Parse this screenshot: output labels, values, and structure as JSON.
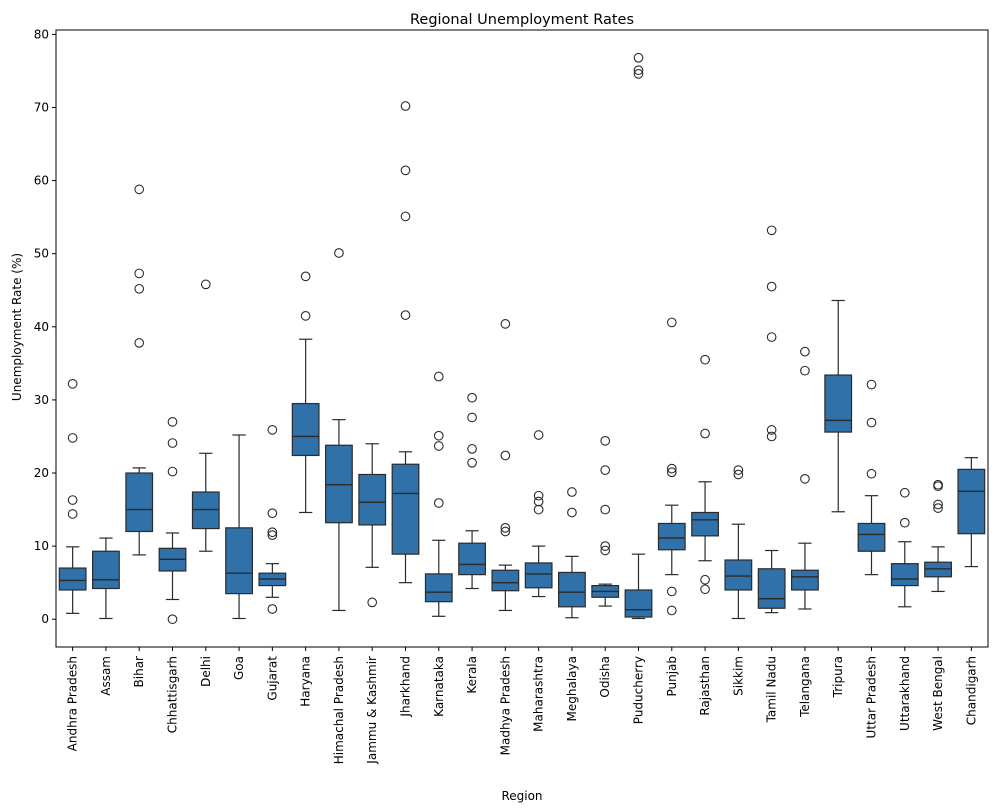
{
  "chart_data": {
    "type": "box",
    "title": "Regional Unemployment Rates",
    "xlabel": "Region",
    "ylabel": "Unemployment Rate (%)",
    "ylim": [
      -3.8,
      80.6
    ],
    "yticks": [
      0,
      10,
      20,
      30,
      40,
      50,
      60,
      70,
      80
    ],
    "grid": false,
    "legend": "none",
    "box_color": "#2f71a8",
    "line_color": "#2b2b2b",
    "categories": [
      {
        "name": "Andhra Pradesh",
        "whisker_low": 0.8,
        "q1": 4.0,
        "median": 5.3,
        "q3": 7.0,
        "whisker_high": 9.9,
        "outliers": [
          14.4,
          16.3,
          24.8,
          32.2
        ]
      },
      {
        "name": "Assam",
        "whisker_low": 0.1,
        "q1": 4.2,
        "median": 5.4,
        "q3": 9.3,
        "whisker_high": 11.1,
        "outliers": []
      },
      {
        "name": "Bihar",
        "whisker_low": 8.8,
        "q1": 12.0,
        "median": 15.0,
        "q3": 20.0,
        "whisker_high": 20.7,
        "outliers": [
          37.8,
          45.2,
          47.3,
          58.8
        ]
      },
      {
        "name": "Chhattisgarh",
        "whisker_low": 2.7,
        "q1": 6.6,
        "median": 8.2,
        "q3": 9.7,
        "whisker_high": 11.8,
        "outliers": [
          0.0,
          20.2,
          24.1,
          27.0
        ]
      },
      {
        "name": "Delhi",
        "whisker_low": 9.3,
        "q1": 12.4,
        "median": 15.0,
        "q3": 17.4,
        "whisker_high": 22.7,
        "outliers": [
          45.8
        ]
      },
      {
        "name": "Goa",
        "whisker_low": 0.1,
        "q1": 3.5,
        "median": 6.3,
        "q3": 12.5,
        "whisker_high": 25.2,
        "outliers": []
      },
      {
        "name": "Gujarat",
        "whisker_low": 3.0,
        "q1": 4.6,
        "median": 5.5,
        "q3": 6.3,
        "whisker_high": 7.6,
        "outliers": [
          1.4,
          11.5,
          11.9,
          14.5,
          25.9
        ]
      },
      {
        "name": "Haryana",
        "whisker_low": 14.6,
        "q1": 22.4,
        "median": 25.0,
        "q3": 29.5,
        "whisker_high": 38.3,
        "outliers": [
          41.5,
          46.9
        ]
      },
      {
        "name": "Himachal Pradesh",
        "whisker_low": 1.2,
        "q1": 13.2,
        "median": 18.4,
        "q3": 23.8,
        "whisker_high": 27.3,
        "outliers": [
          50.1
        ]
      },
      {
        "name": "Jammu & Kashmir",
        "whisker_low": 7.1,
        "q1": 12.9,
        "median": 16.0,
        "q3": 19.8,
        "whisker_high": 24.0,
        "outliers": [
          2.3
        ]
      },
      {
        "name": "Jharkhand",
        "whisker_low": 5.0,
        "q1": 8.9,
        "median": 17.2,
        "q3": 21.2,
        "whisker_high": 22.9,
        "outliers": [
          41.6,
          55.1,
          61.4,
          70.2
        ]
      },
      {
        "name": "Karnataka",
        "whisker_low": 0.4,
        "q1": 2.4,
        "median": 3.7,
        "q3": 6.2,
        "whisker_high": 10.8,
        "outliers": [
          15.9,
          23.7,
          25.1,
          33.2
        ]
      },
      {
        "name": "Kerala",
        "whisker_low": 4.2,
        "q1": 6.1,
        "median": 7.5,
        "q3": 10.4,
        "whisker_high": 12.1,
        "outliers": [
          21.4,
          23.3,
          27.6,
          30.3
        ]
      },
      {
        "name": "Madhya Pradesh",
        "whisker_low": 1.2,
        "q1": 3.9,
        "median": 5.0,
        "q3": 6.7,
        "whisker_high": 7.4,
        "outliers": [
          12.0,
          12.5,
          22.4,
          40.4
        ]
      },
      {
        "name": "Maharashtra",
        "whisker_low": 3.1,
        "q1": 4.3,
        "median": 6.2,
        "q3": 7.7,
        "whisker_high": 10.0,
        "outliers": [
          15.0,
          16.1,
          16.9,
          25.2
        ]
      },
      {
        "name": "Meghalaya",
        "whisker_low": 0.2,
        "q1": 1.7,
        "median": 3.7,
        "q3": 6.4,
        "whisker_high": 8.6,
        "outliers": [
          14.6,
          17.4
        ]
      },
      {
        "name": "Odisha",
        "whisker_low": 1.8,
        "q1": 3.0,
        "median": 3.8,
        "q3": 4.6,
        "whisker_high": 4.8,
        "outliers": [
          9.4,
          10.0,
          15.0,
          20.4,
          24.4
        ]
      },
      {
        "name": "Puducherry",
        "whisker_low": 0.1,
        "q1": 0.3,
        "median": 1.3,
        "q3": 4.0,
        "whisker_high": 8.9,
        "outliers": [
          74.6,
          75.1,
          76.8
        ]
      },
      {
        "name": "Punjab",
        "whisker_low": 6.1,
        "q1": 9.5,
        "median": 11.1,
        "q3": 13.1,
        "whisker_high": 15.6,
        "outliers": [
          1.2,
          3.8,
          20.1,
          20.6,
          40.6
        ]
      },
      {
        "name": "Rajasthan",
        "whisker_low": 8.0,
        "q1": 11.4,
        "median": 13.6,
        "q3": 14.6,
        "whisker_high": 18.8,
        "outliers": [
          4.1,
          5.4,
          25.4,
          35.5
        ]
      },
      {
        "name": "Sikkim",
        "whisker_low": 0.1,
        "q1": 4.0,
        "median": 5.9,
        "q3": 8.1,
        "whisker_high": 13.0,
        "outliers": [
          19.8,
          20.4
        ]
      },
      {
        "name": "Tamil Nadu",
        "whisker_low": 0.9,
        "q1": 1.5,
        "median": 2.8,
        "q3": 6.9,
        "whisker_high": 9.4,
        "outliers": [
          25.0,
          25.9,
          38.6,
          45.5,
          53.2
        ]
      },
      {
        "name": "Telangana",
        "whisker_low": 1.4,
        "q1": 4.0,
        "median": 5.8,
        "q3": 6.7,
        "whisker_high": 10.4,
        "outliers": [
          19.2,
          34.0,
          36.6
        ]
      },
      {
        "name": "Tripura",
        "whisker_low": 14.7,
        "q1": 25.6,
        "median": 27.2,
        "q3": 33.4,
        "whisker_high": 43.6,
        "outliers": []
      },
      {
        "name": "Uttar Pradesh",
        "whisker_low": 6.1,
        "q1": 9.3,
        "median": 11.6,
        "q3": 13.1,
        "whisker_high": 16.9,
        "outliers": [
          19.9,
          26.9,
          32.1
        ]
      },
      {
        "name": "Uttarakhand",
        "whisker_low": 1.7,
        "q1": 4.6,
        "median": 5.5,
        "q3": 7.6,
        "whisker_high": 10.6,
        "outliers": [
          13.2,
          17.3
        ]
      },
      {
        "name": "West Bengal",
        "whisker_low": 3.8,
        "q1": 5.8,
        "median": 6.9,
        "q3": 7.8,
        "whisker_high": 9.9,
        "outliers": [
          15.2,
          15.7,
          18.2,
          18.4
        ]
      },
      {
        "name": "Chandigarh",
        "whisker_low": 7.2,
        "q1": 11.7,
        "median": 17.5,
        "q3": 20.5,
        "whisker_high": 22.1,
        "outliers": []
      }
    ]
  }
}
